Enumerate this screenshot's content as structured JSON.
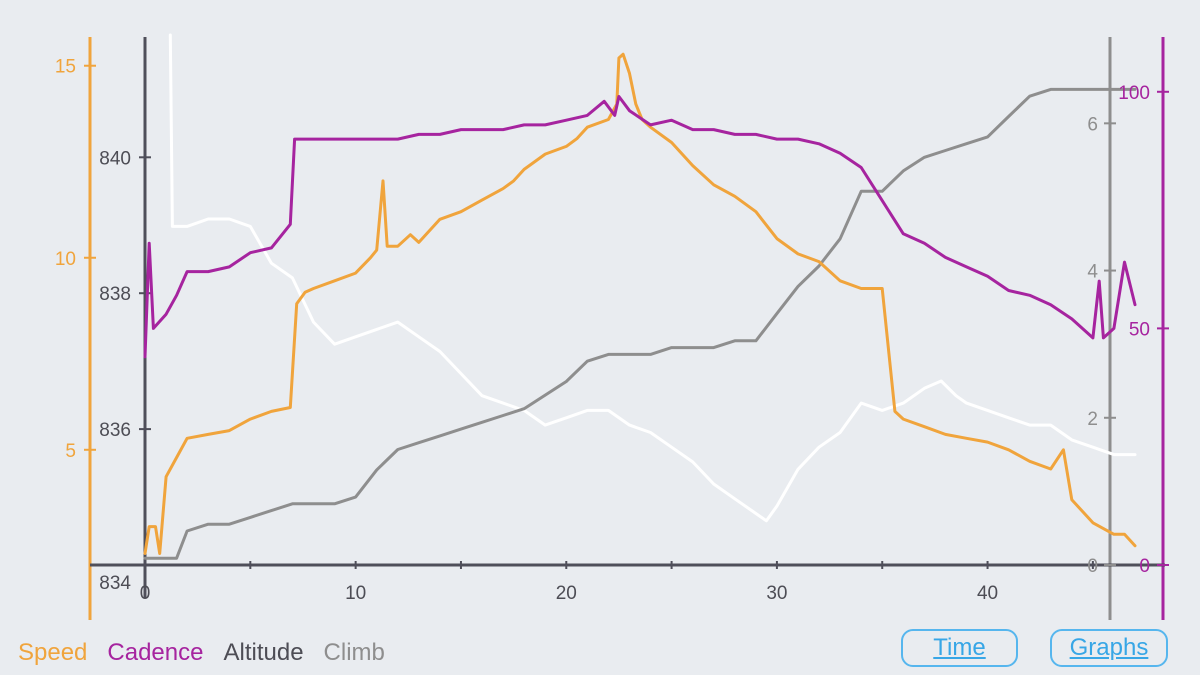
{
  "colors": {
    "speed": "#f0a43c",
    "cadence": "#a6249f",
    "altitude": "#8e8e8e",
    "climb": "#ffffff",
    "axis_dark": "#4f4f5a",
    "text_dark": "#4d4d55",
    "button": "#37a6e6"
  },
  "legend": {
    "speed": "Speed",
    "cadence": "Cadence",
    "altitude": "Altitude",
    "climb": "Climb"
  },
  "buttons": {
    "time": "Time",
    "graphs": "Graphs"
  },
  "chart_data": {
    "type": "line",
    "title": "",
    "x": {
      "label": "",
      "range": [
        0,
        47
      ],
      "ticks": [
        0,
        10,
        20,
        30,
        40
      ]
    },
    "axes": {
      "speed": {
        "range": [
          2,
          15.8
        ],
        "ticks": [
          5,
          10,
          15
        ]
      },
      "altitude": {
        "range": [
          834,
          841.8
        ],
        "ticks": [
          834,
          836,
          838,
          840
        ]
      },
      "climb": {
        "range": [
          0,
          7.2
        ],
        "ticks": [
          0,
          2,
          4,
          6
        ]
      },
      "cadence": {
        "range": [
          0,
          112
        ],
        "ticks": [
          0,
          50,
          100
        ]
      }
    },
    "series": [
      {
        "name": "Speed",
        "axis": "speed",
        "color_key": "speed",
        "points": [
          [
            0,
            2.3
          ],
          [
            0.2,
            3
          ],
          [
            0.5,
            3
          ],
          [
            0.7,
            2.3
          ],
          [
            1,
            4.3
          ],
          [
            1.5,
            4.8
          ],
          [
            2,
            5.3
          ],
          [
            3,
            5.4
          ],
          [
            4,
            5.5
          ],
          [
            5,
            5.8
          ],
          [
            6,
            6
          ],
          [
            6.9,
            6.1
          ],
          [
            7.2,
            8.8
          ],
          [
            7.6,
            9.1
          ],
          [
            8,
            9.2
          ],
          [
            9,
            9.4
          ],
          [
            10,
            9.6
          ],
          [
            10.7,
            10
          ],
          [
            11,
            10.2
          ],
          [
            11.3,
            12
          ],
          [
            11.5,
            10.3
          ],
          [
            12,
            10.3
          ],
          [
            12.6,
            10.6
          ],
          [
            13,
            10.4
          ],
          [
            14,
            11
          ],
          [
            15,
            11.2
          ],
          [
            16,
            11.5
          ],
          [
            17,
            11.8
          ],
          [
            17.5,
            12
          ],
          [
            18,
            12.3
          ],
          [
            19,
            12.7
          ],
          [
            20,
            12.9
          ],
          [
            20.5,
            13.1
          ],
          [
            21,
            13.4
          ],
          [
            22,
            13.6
          ],
          [
            22.4,
            14
          ],
          [
            22.5,
            15.2
          ],
          [
            22.7,
            15.3
          ],
          [
            23,
            14.8
          ],
          [
            23.3,
            14
          ],
          [
            23.6,
            13.6
          ],
          [
            24,
            13.4
          ],
          [
            25,
            13
          ],
          [
            26,
            12.4
          ],
          [
            27,
            11.9
          ],
          [
            28,
            11.6
          ],
          [
            29,
            11.2
          ],
          [
            30,
            10.5
          ],
          [
            31,
            10.1
          ],
          [
            32,
            9.9
          ],
          [
            33,
            9.4
          ],
          [
            34,
            9.2
          ],
          [
            35,
            9.2
          ],
          [
            35.6,
            6
          ],
          [
            36,
            5.8
          ],
          [
            37,
            5.6
          ],
          [
            38,
            5.4
          ],
          [
            39,
            5.3
          ],
          [
            40,
            5.2
          ],
          [
            41,
            5
          ],
          [
            42,
            4.7
          ],
          [
            43,
            4.5
          ],
          [
            43.6,
            5
          ],
          [
            44,
            3.7
          ],
          [
            45,
            3.1
          ],
          [
            46,
            2.8
          ],
          [
            46.5,
            2.8
          ],
          [
            47,
            2.5
          ]
        ]
      },
      {
        "name": "Cadence",
        "axis": "cadence",
        "color_key": "cadence",
        "points": [
          [
            0,
            44
          ],
          [
            0.2,
            68
          ],
          [
            0.4,
            50
          ],
          [
            1,
            53
          ],
          [
            1.5,
            57
          ],
          [
            2,
            62
          ],
          [
            3,
            62
          ],
          [
            4,
            63
          ],
          [
            5,
            66
          ],
          [
            6,
            67
          ],
          [
            6.9,
            72
          ],
          [
            7.1,
            90
          ],
          [
            8,
            90
          ],
          [
            9,
            90
          ],
          [
            10,
            90
          ],
          [
            11,
            90
          ],
          [
            12,
            90
          ],
          [
            13,
            91
          ],
          [
            14,
            91
          ],
          [
            15,
            92
          ],
          [
            16,
            92
          ],
          [
            17,
            92
          ],
          [
            18,
            93
          ],
          [
            19,
            93
          ],
          [
            20,
            94
          ],
          [
            21,
            95
          ],
          [
            21.8,
            98
          ],
          [
            22.3,
            95
          ],
          [
            22.5,
            99
          ],
          [
            23,
            96
          ],
          [
            24,
            93
          ],
          [
            25,
            94
          ],
          [
            26,
            92
          ],
          [
            27,
            92
          ],
          [
            28,
            91
          ],
          [
            29,
            91
          ],
          [
            30,
            90
          ],
          [
            31,
            90
          ],
          [
            32,
            89
          ],
          [
            33,
            87
          ],
          [
            34,
            84
          ],
          [
            35,
            77
          ],
          [
            36,
            70
          ],
          [
            37,
            68
          ],
          [
            38,
            65
          ],
          [
            39,
            63
          ],
          [
            40,
            61
          ],
          [
            41,
            58
          ],
          [
            42,
            57
          ],
          [
            43,
            55
          ],
          [
            44,
            52
          ],
          [
            45,
            48
          ],
          [
            45.3,
            60
          ],
          [
            45.5,
            48
          ],
          [
            46,
            50
          ],
          [
            46.5,
            64
          ],
          [
            47,
            55
          ]
        ]
      },
      {
        "name": "Altitude",
        "axis": "altitude",
        "color_key": "altitude",
        "points": [
          [
            0,
            834.1
          ],
          [
            0.8,
            834.1
          ],
          [
            1.3,
            834.1
          ],
          [
            1.5,
            834.1
          ],
          [
            2,
            834.5
          ],
          [
            3,
            834.6
          ],
          [
            4,
            834.6
          ],
          [
            5,
            834.7
          ],
          [
            6,
            834.8
          ],
          [
            7,
            834.9
          ],
          [
            8,
            834.9
          ],
          [
            9,
            834.9
          ],
          [
            10,
            835
          ],
          [
            11,
            835.4
          ],
          [
            12,
            835.7
          ],
          [
            13,
            835.8
          ],
          [
            14,
            835.9
          ],
          [
            15,
            836
          ],
          [
            16,
            836.1
          ],
          [
            17,
            836.2
          ],
          [
            18,
            836.3
          ],
          [
            19,
            836.5
          ],
          [
            20,
            836.7
          ],
          [
            21,
            837
          ],
          [
            22,
            837.1
          ],
          [
            23,
            837.1
          ],
          [
            24,
            837.1
          ],
          [
            25,
            837.2
          ],
          [
            26,
            837.2
          ],
          [
            27,
            837.2
          ],
          [
            28,
            837.3
          ],
          [
            29,
            837.3
          ],
          [
            30,
            837.7
          ],
          [
            31,
            838.1
          ],
          [
            32,
            838.4
          ],
          [
            33,
            838.8
          ],
          [
            34,
            839.5
          ],
          [
            35,
            839.5
          ],
          [
            36,
            839.8
          ],
          [
            37,
            840
          ],
          [
            38,
            840.1
          ],
          [
            39,
            840.2
          ],
          [
            40,
            840.3
          ],
          [
            41,
            840.6
          ],
          [
            42,
            840.9
          ],
          [
            43,
            841
          ],
          [
            44,
            841
          ],
          [
            45,
            841
          ],
          [
            46,
            841
          ],
          [
            47,
            841
          ]
        ]
      },
      {
        "name": "Climb",
        "axis": "climb",
        "color_key": "climb",
        "points": [
          [
            1.2,
            7.2
          ],
          [
            1.3,
            4.6
          ],
          [
            1.5,
            4.6
          ],
          [
            2,
            4.6
          ],
          [
            3,
            4.7
          ],
          [
            4,
            4.7
          ],
          [
            5,
            4.6
          ],
          [
            6,
            4.1
          ],
          [
            7,
            3.9
          ],
          [
            8,
            3.3
          ],
          [
            9,
            3
          ],
          [
            10,
            3.1
          ],
          [
            11,
            3.2
          ],
          [
            12,
            3.3
          ],
          [
            13,
            3.1
          ],
          [
            14,
            2.9
          ],
          [
            15,
            2.6
          ],
          [
            16,
            2.3
          ],
          [
            17,
            2.2
          ],
          [
            18,
            2.1
          ],
          [
            19,
            1.9
          ],
          [
            20,
            2
          ],
          [
            21,
            2.1
          ],
          [
            22,
            2.1
          ],
          [
            23,
            1.9
          ],
          [
            24,
            1.8
          ],
          [
            25,
            1.6
          ],
          [
            26,
            1.4
          ],
          [
            27,
            1.1
          ],
          [
            28,
            0.9
          ],
          [
            29,
            0.7
          ],
          [
            29.5,
            0.6
          ],
          [
            30,
            0.8
          ],
          [
            31,
            1.3
          ],
          [
            32,
            1.6
          ],
          [
            33,
            1.8
          ],
          [
            34,
            2.2
          ],
          [
            35,
            2.1
          ],
          [
            36,
            2.2
          ],
          [
            37,
            2.4
          ],
          [
            37.8,
            2.5
          ],
          [
            38.5,
            2.3
          ],
          [
            39,
            2.2
          ],
          [
            40,
            2.1
          ],
          [
            41,
            2
          ],
          [
            42,
            1.9
          ],
          [
            43,
            1.9
          ],
          [
            44,
            1.7
          ],
          [
            45,
            1.6
          ],
          [
            46,
            1.5
          ],
          [
            47,
            1.5
          ]
        ]
      }
    ]
  }
}
